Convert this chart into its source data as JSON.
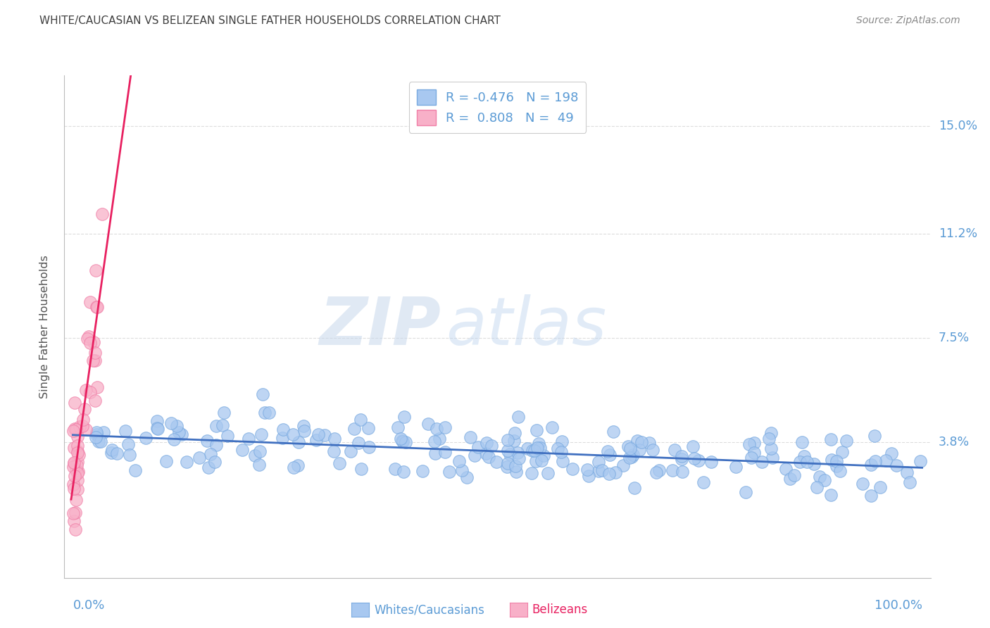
{
  "title": "WHITE/CAUCASIAN VS BELIZEAN SINGLE FATHER HOUSEHOLDS CORRELATION CHART",
  "source": "Source: ZipAtlas.com",
  "ylabel": "Single Father Households",
  "ytick_labels": [
    "3.8%",
    "7.5%",
    "11.2%",
    "15.0%"
  ],
  "ytick_values": [
    0.038,
    0.075,
    0.112,
    0.15
  ],
  "xlim": [
    -0.01,
    1.01
  ],
  "ylim": [
    -0.01,
    0.168
  ],
  "blue_R": -0.476,
  "blue_N": 198,
  "pink_R": 0.808,
  "pink_N": 49,
  "blue_color": "#A8C8F0",
  "pink_color": "#F8B0C8",
  "blue_edge_color": "#7aaae0",
  "pink_edge_color": "#f080a8",
  "blue_line_color": "#4070C0",
  "pink_line_color": "#E82060",
  "legend_label_blue": "Whites/Caucasians",
  "legend_label_pink": "Belizeans",
  "watermark_zip": "ZIP",
  "watermark_atlas": "atlas",
  "background_color": "#FFFFFF",
  "grid_color": "#DDDDDD",
  "title_color": "#404040",
  "axis_label_color": "#5B9BD5",
  "source_color": "#888888"
}
